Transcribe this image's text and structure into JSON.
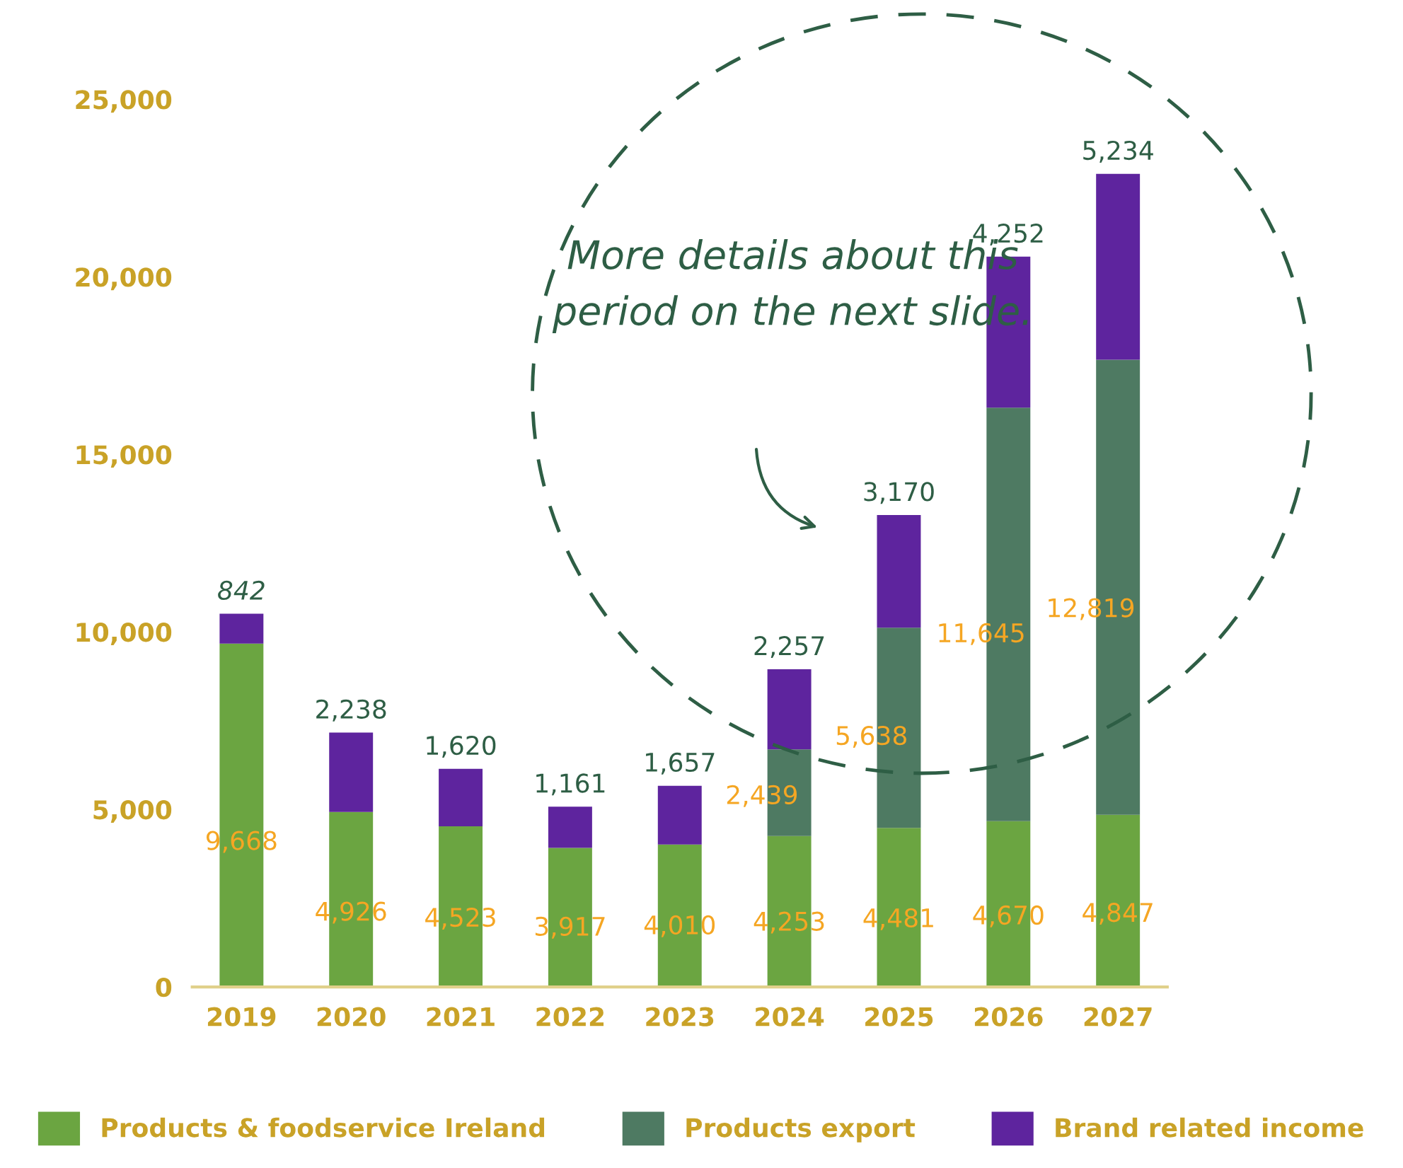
{
  "chart_data": {
    "type": "bar",
    "stacked": true,
    "categories": [
      "2019",
      "2020",
      "2021",
      "2022",
      "2023",
      "2024",
      "2025",
      "2026",
      "2027"
    ],
    "series": [
      {
        "name": "Products & foodservice Ireland",
        "color": "#6ba541",
        "values": [
          9668,
          4926,
          4523,
          3917,
          4010,
          4253,
          4481,
          4670,
          4847
        ],
        "value_labels": [
          "9,668",
          "4,926",
          "4,523",
          "3,917",
          "4,010",
          "4,253",
          "4,481",
          "4,670",
          "4,847"
        ]
      },
      {
        "name": "Products export",
        "color": "#4e7a62",
        "values": [
          null,
          null,
          null,
          null,
          null,
          2439,
          5638,
          11645,
          12819
        ],
        "value_labels": [
          null,
          null,
          null,
          null,
          null,
          "2,439",
          "5,638",
          "11,645",
          "12,819"
        ]
      },
      {
        "name": "Brand related income",
        "color": "#5e249e",
        "values": [
          842,
          2238,
          1620,
          1161,
          1657,
          2257,
          3170,
          4252,
          5234
        ],
        "value_labels": [
          "842",
          "2,238",
          "1,620",
          "1,161",
          "1,657",
          "2,257",
          "3,170",
          "4,252",
          "5,234"
        ]
      }
    ],
    "ylim": [
      0,
      25000
    ],
    "yticks": [
      {
        "value": 0,
        "label": "0"
      },
      {
        "value": 5000,
        "label": "5,000"
      },
      {
        "value": 10000,
        "label": "10,000"
      },
      {
        "value": 15000,
        "label": "15,000"
      },
      {
        "value": 20000,
        "label": "20,000"
      },
      {
        "value": 25000,
        "label": "25,000"
      }
    ],
    "grid": false,
    "legend": "bottom",
    "annotations": [
      "More details about this period on the next slide."
    ]
  }
}
